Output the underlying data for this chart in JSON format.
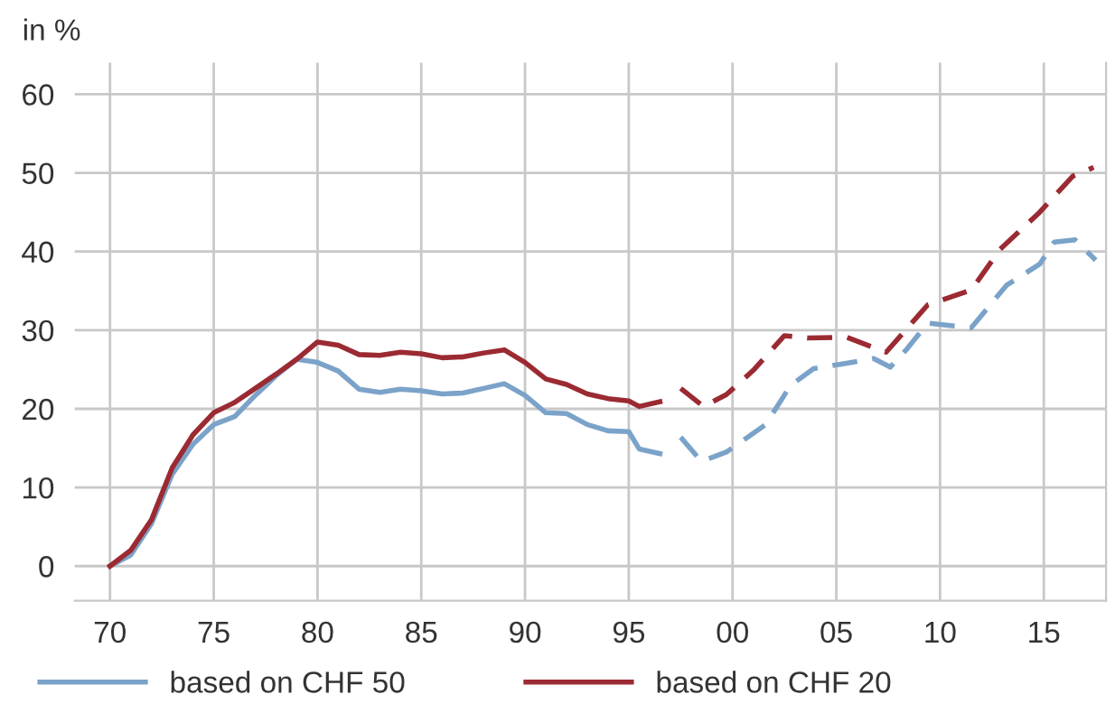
{
  "chart_data": {
    "type": "line",
    "ylabel": "in %",
    "xlim": [
      1968.3,
      2018
    ],
    "ylim": [
      -4.4,
      64
    ],
    "xticks": [
      {
        "value": 1970,
        "label": "70"
      },
      {
        "value": 1975,
        "label": "75"
      },
      {
        "value": 1980,
        "label": "80"
      },
      {
        "value": 1985,
        "label": "85"
      },
      {
        "value": 1990,
        "label": "90"
      },
      {
        "value": 1995,
        "label": "95"
      },
      {
        "value": 2000,
        "label": "00"
      },
      {
        "value": 2005,
        "label": "05"
      },
      {
        "value": 2010,
        "label": "10"
      },
      {
        "value": 2015,
        "label": "15"
      }
    ],
    "yticks": [
      0,
      10,
      20,
      30,
      40,
      50,
      60
    ],
    "grid": true,
    "legend": "bottom",
    "marker": "none",
    "series": [
      {
        "name": "based on CHF 50",
        "color": "#7ba3c9",
        "line_style": "solid",
        "x": [
          1970,
          1971,
          1972,
          1973,
          1974,
          1975,
          1976,
          1977,
          1978,
          1979,
          1980,
          1981,
          1982,
          1983,
          1984,
          1985,
          1986,
          1987,
          1988,
          1989,
          1990,
          1991,
          1992,
          1993,
          1994,
          1995,
          1995.5,
          1996.5
        ],
        "values": [
          0,
          1.4,
          5.4,
          11.7,
          15.5,
          18,
          19,
          21.7,
          24.2,
          26.3,
          25.9,
          24.8,
          22.5,
          22.1,
          22.5,
          22.3,
          21.9,
          22,
          22.6,
          23.2,
          21.7,
          19.5,
          19.4,
          18,
          17.2,
          17.1,
          14.9,
          14.3
        ]
      },
      {
        "name": "based on CHF 20",
        "color": "#9b2a32",
        "line_style": "solid",
        "x": [
          1970,
          1971,
          1972,
          1973,
          1974,
          1975,
          1976,
          1977,
          1978,
          1979,
          1980,
          1981,
          1982,
          1983,
          1984,
          1985,
          1986,
          1987,
          1988,
          1989,
          1990,
          1991,
          1992,
          1993,
          1994,
          1995,
          1995.5,
          1996.5
        ],
        "values": [
          0,
          2,
          5.9,
          12.5,
          16.7,
          19.5,
          20.8,
          22.6,
          24.4,
          26.3,
          28.5,
          28.1,
          26.9,
          26.8,
          27.2,
          27,
          26.5,
          26.6,
          27.1,
          27.5,
          25.9,
          23.8,
          23.1,
          21.9,
          21.3,
          21,
          20.3,
          20.9
        ]
      },
      {
        "color": "#7ba3c9",
        "line_style": "dashed",
        "x": [
          1997.5,
          1998.5,
          1999.7,
          2001.6,
          2002.8,
          2003.9,
          2005.5,
          2006.8,
          2007.6,
          2008.4,
          2009.4,
          2011.5,
          2013.2,
          2014.8,
          2015.5,
          2016.5,
          2017.5
        ],
        "values": [
          16.4,
          13.3,
          14.5,
          18,
          23,
          25.1,
          25.8,
          26.4,
          25.3,
          27.6,
          30.9,
          30.3,
          35.7,
          38.4,
          41.2,
          41.5,
          38.9
        ]
      },
      {
        "color": "#9b2a32",
        "line_style": "dashed",
        "x": [
          1997.5,
          1998.6,
          1999.7,
          2001,
          2002.5,
          2003.6,
          2005.5,
          2007.4,
          2009.4,
          2011.5,
          2012.9,
          2014.8,
          2016.4,
          2017.4
        ],
        "values": [
          22.6,
          20.3,
          21.8,
          24.9,
          29.3,
          29,
          29.1,
          27.2,
          33.2,
          35.1,
          40.3,
          45,
          49.6,
          50.7
        ]
      }
    ]
  }
}
